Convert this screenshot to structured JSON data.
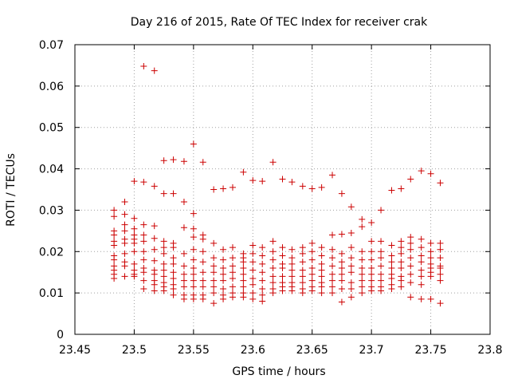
{
  "chart_data": {
    "type": "scatter",
    "title": "Day 216 of 2015, Rate Of TEC Index for receiver crak",
    "xlabel": "GPS time / hours",
    "ylabel": "ROTI / TECUs",
    "xlim": [
      23.45,
      23.8
    ],
    "ylim": [
      0,
      0.07
    ],
    "xticks": [
      23.45,
      23.5,
      23.55,
      23.6,
      23.65,
      23.7,
      23.75,
      23.8
    ],
    "xtick_labels": [
      "23.45",
      "23.5",
      "23.55",
      "23.6",
      "23.65",
      "23.7",
      "23.75",
      "23.8"
    ],
    "yticks": [
      0,
      0.01,
      0.02,
      0.03,
      0.04,
      0.05,
      0.06,
      0.07
    ],
    "ytick_labels": [
      "0",
      "0.01",
      "0.02",
      "0.03",
      "0.04",
      "0.05",
      "0.06",
      "0.07"
    ],
    "grid": true,
    "legend": "none",
    "marker": "plus",
    "color": "#cc0000",
    "series": [
      {
        "x": [
          23.483,
          23.483,
          23.483,
          23.483,
          23.483,
          23.483,
          23.483,
          23.483,
          23.483,
          23.483,
          23.483,
          23.483,
          23.492,
          23.492,
          23.492,
          23.492,
          23.492,
          23.492,
          23.492,
          23.492,
          23.492,
          23.492,
          23.5,
          23.5,
          23.5,
          23.5,
          23.5,
          23.5,
          23.5,
          23.5,
          23.5,
          23.5,
          23.5,
          23.508,
          23.508,
          23.508,
          23.508,
          23.508,
          23.508,
          23.508,
          23.508,
          23.508,
          23.508,
          23.508,
          23.517,
          23.517,
          23.517,
          23.517,
          23.517,
          23.517,
          23.517,
          23.517,
          23.517,
          23.517,
          23.517,
          23.525,
          23.525,
          23.525,
          23.525,
          23.525,
          23.525,
          23.525,
          23.525,
          23.525,
          23.525,
          23.525,
          23.533,
          23.533,
          23.533,
          23.533,
          23.533,
          23.533,
          23.533,
          23.533,
          23.533,
          23.533,
          23.533,
          23.542,
          23.542,
          23.542,
          23.542,
          23.542,
          23.542,
          23.542,
          23.542,
          23.542,
          23.542,
          23.55,
          23.55,
          23.55,
          23.55,
          23.55,
          23.55,
          23.55,
          23.55,
          23.55,
          23.55,
          23.55,
          23.55,
          23.558,
          23.558,
          23.558,
          23.558,
          23.558,
          23.558,
          23.558,
          23.558,
          23.558,
          23.558,
          23.567,
          23.567,
          23.567,
          23.567,
          23.567,
          23.567,
          23.567,
          23.567,
          23.567,
          23.575,
          23.575,
          23.575,
          23.575,
          23.575,
          23.575,
          23.575,
          23.575,
          23.575,
          23.583,
          23.583,
          23.583,
          23.583,
          23.583,
          23.583,
          23.583,
          23.583,
          23.583,
          23.592,
          23.592,
          23.592,
          23.592,
          23.592,
          23.592,
          23.592,
          23.592,
          23.592,
          23.592,
          23.6,
          23.6,
          23.6,
          23.6,
          23.6,
          23.6,
          23.6,
          23.6,
          23.6,
          23.608,
          23.608,
          23.608,
          23.608,
          23.608,
          23.608,
          23.608,
          23.608,
          23.608,
          23.617,
          23.617,
          23.617,
          23.617,
          23.617,
          23.617,
          23.617,
          23.617,
          23.617,
          23.625,
          23.625,
          23.625,
          23.625,
          23.625,
          23.625,
          23.625,
          23.625,
          23.625,
          23.633,
          23.633,
          23.633,
          23.633,
          23.633,
          23.633,
          23.633,
          23.633,
          23.633,
          23.642,
          23.642,
          23.642,
          23.642,
          23.642,
          23.642,
          23.642,
          23.642,
          23.642,
          23.65,
          23.65,
          23.65,
          23.65,
          23.65,
          23.65,
          23.65,
          23.65,
          23.65,
          23.658,
          23.658,
          23.658,
          23.658,
          23.658,
          23.658,
          23.658,
          23.658,
          23.658,
          23.667,
          23.667,
          23.667,
          23.667,
          23.667,
          23.667,
          23.667,
          23.667,
          23.667,
          23.675,
          23.675,
          23.675,
          23.675,
          23.675,
          23.675,
          23.675,
          23.675,
          23.675,
          23.683,
          23.683,
          23.683,
          23.683,
          23.683,
          23.683,
          23.683,
          23.683,
          23.683,
          23.692,
          23.692,
          23.692,
          23.692,
          23.692,
          23.692,
          23.692,
          23.692,
          23.692,
          23.7,
          23.7,
          23.7,
          23.7,
          23.7,
          23.7,
          23.7,
          23.7,
          23.7,
          23.708,
          23.708,
          23.708,
          23.708,
          23.708,
          23.708,
          23.708,
          23.708,
          23.708,
          23.717,
          23.717,
          23.717,
          23.717,
          23.717,
          23.717,
          23.717,
          23.717,
          23.717,
          23.725,
          23.725,
          23.725,
          23.725,
          23.725,
          23.725,
          23.725,
          23.725,
          23.725,
          23.733,
          23.733,
          23.733,
          23.733,
          23.733,
          23.733,
          23.733,
          23.733,
          23.733,
          23.742,
          23.742,
          23.742,
          23.742,
          23.742,
          23.742,
          23.742,
          23.742,
          23.742,
          23.75,
          23.75,
          23.75,
          23.75,
          23.75,
          23.75,
          23.75,
          23.75,
          23.75,
          23.758,
          23.758,
          23.758,
          23.758,
          23.758,
          23.758,
          23.758,
          23.758,
          23.758
        ],
        "y": [
          0.03,
          0.0285,
          0.025,
          0.024,
          0.0225,
          0.0215,
          0.019,
          0.018,
          0.0165,
          0.0155,
          0.0145,
          0.0135,
          0.032,
          0.029,
          0.0265,
          0.025,
          0.023,
          0.022,
          0.0195,
          0.0175,
          0.0165,
          0.014,
          0.037,
          0.028,
          0.0255,
          0.024,
          0.023,
          0.022,
          0.02,
          0.017,
          0.0155,
          0.0145,
          0.014,
          0.0648,
          0.0368,
          0.0265,
          0.024,
          0.0225,
          0.02,
          0.018,
          0.016,
          0.015,
          0.013,
          0.011,
          0.0637,
          0.0358,
          0.0262,
          0.0232,
          0.0205,
          0.0178,
          0.0155,
          0.0145,
          0.013,
          0.012,
          0.0105,
          0.042,
          0.034,
          0.0225,
          0.021,
          0.0195,
          0.017,
          0.0155,
          0.014,
          0.0125,
          0.0115,
          0.0105,
          0.0422,
          0.034,
          0.022,
          0.021,
          0.0185,
          0.017,
          0.015,
          0.0135,
          0.012,
          0.011,
          0.0095,
          0.0418,
          0.032,
          0.0258,
          0.0195,
          0.0165,
          0.0145,
          0.013,
          0.0115,
          0.0095,
          0.0085,
          0.046,
          0.0292,
          0.0255,
          0.0235,
          0.0205,
          0.018,
          0.016,
          0.0145,
          0.013,
          0.0115,
          0.0095,
          0.0085,
          0.0416,
          0.024,
          0.023,
          0.02,
          0.0175,
          0.015,
          0.013,
          0.0115,
          0.0095,
          0.0085,
          0.035,
          0.022,
          0.0185,
          0.0165,
          0.015,
          0.013,
          0.0115,
          0.01,
          0.0075,
          0.0352,
          0.0205,
          0.018,
          0.016,
          0.0145,
          0.013,
          0.011,
          0.0095,
          0.0085,
          0.0355,
          0.021,
          0.0185,
          0.0165,
          0.015,
          0.0135,
          0.0115,
          0.01,
          0.009,
          0.0392,
          0.0195,
          0.0185,
          0.0175,
          0.016,
          0.0145,
          0.013,
          0.0115,
          0.01,
          0.009,
          0.0372,
          0.0215,
          0.0195,
          0.0175,
          0.0155,
          0.0135,
          0.012,
          0.01,
          0.0085,
          0.037,
          0.021,
          0.019,
          0.017,
          0.015,
          0.013,
          0.011,
          0.0095,
          0.008,
          0.0416,
          0.0225,
          0.02,
          0.018,
          0.016,
          0.014,
          0.0125,
          0.011,
          0.01,
          0.0375,
          0.021,
          0.019,
          0.017,
          0.016,
          0.014,
          0.0125,
          0.0115,
          0.0105,
          0.0368,
          0.0205,
          0.0185,
          0.017,
          0.0155,
          0.014,
          0.0125,
          0.0115,
          0.0105,
          0.0358,
          0.021,
          0.0195,
          0.0175,
          0.0155,
          0.014,
          0.0125,
          0.011,
          0.01,
          0.0352,
          0.022,
          0.02,
          0.018,
          0.016,
          0.0145,
          0.013,
          0.0115,
          0.0105,
          0.0355,
          0.021,
          0.019,
          0.017,
          0.0155,
          0.014,
          0.0125,
          0.0115,
          0.01,
          0.0385,
          0.024,
          0.0205,
          0.0185,
          0.0165,
          0.0145,
          0.013,
          0.0115,
          0.01,
          0.034,
          0.0242,
          0.0195,
          0.0175,
          0.016,
          0.0145,
          0.013,
          0.011,
          0.0078,
          0.0308,
          0.0245,
          0.021,
          0.0185,
          0.0165,
          0.015,
          0.0125,
          0.011,
          0.009,
          0.0278,
          0.026,
          0.02,
          0.018,
          0.016,
          0.0145,
          0.013,
          0.0115,
          0.01,
          0.027,
          0.0225,
          0.02,
          0.018,
          0.016,
          0.0145,
          0.013,
          0.0115,
          0.0105,
          0.03,
          0.0225,
          0.02,
          0.0185,
          0.0165,
          0.0145,
          0.013,
          0.0115,
          0.0105,
          0.0348,
          0.0215,
          0.019,
          0.0175,
          0.016,
          0.0145,
          0.0135,
          0.012,
          0.011,
          0.0352,
          0.0225,
          0.021,
          0.0195,
          0.0175,
          0.016,
          0.014,
          0.013,
          0.0115,
          0.0375,
          0.0235,
          0.022,
          0.0205,
          0.0185,
          0.0165,
          0.0145,
          0.0125,
          0.009,
          0.0395,
          0.023,
          0.021,
          0.019,
          0.0175,
          0.0155,
          0.014,
          0.012,
          0.0085,
          0.0388,
          0.022,
          0.02,
          0.0185,
          0.017,
          0.016,
          0.015,
          0.014,
          0.0085,
          0.0366,
          0.022,
          0.0205,
          0.0185,
          0.0165,
          0.016,
          0.0145,
          0.013,
          0.0075
        ]
      }
    ]
  }
}
